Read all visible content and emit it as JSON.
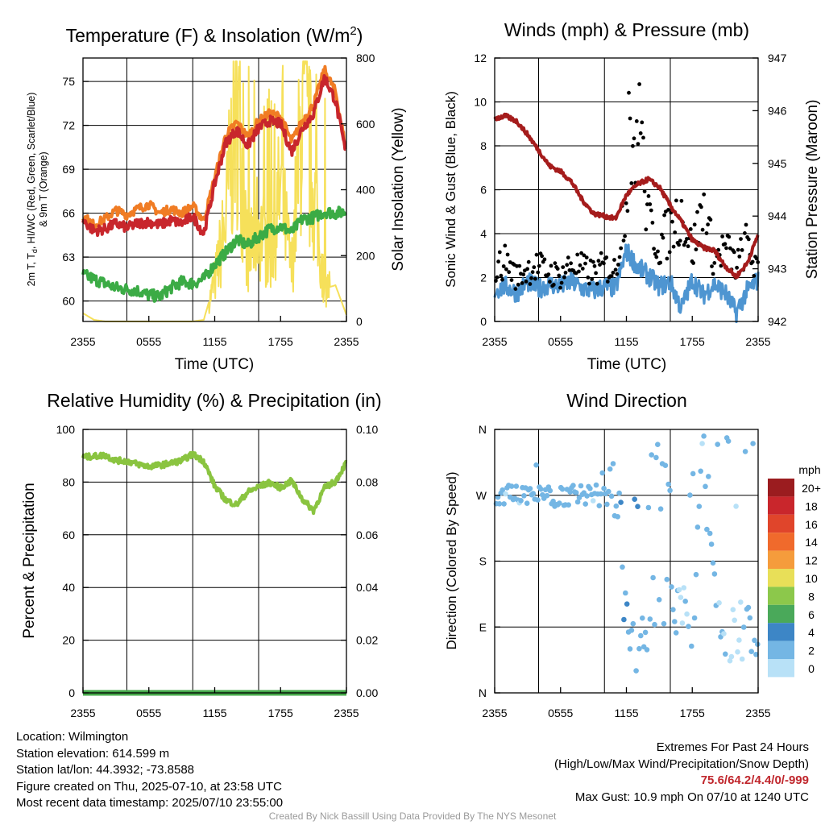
{
  "colors": {
    "red": "#c8262c",
    "orange": "#f07c24",
    "green": "#3bab45",
    "yellow": "#f6e05a",
    "blue": "#4e95d1",
    "black": "#000000",
    "maroon": "#a51c1c",
    "rh": "#8ac440",
    "precip": "#46a84a",
    "extremes": "#c0272d"
  },
  "x_ticks": [
    "2355",
    "0555",
    "1155",
    "1755",
    "2355"
  ],
  "panels": {
    "temperature": {
      "title_main": "Temperature (F) & Insolation (W/m",
      "title_sup": "2",
      "title_close": ")",
      "xlabel": "Time (UTC)",
      "ylabel_line1": "2m T, T",
      "ylabel_sub": "d",
      "ylabel_line1_rest": ", HI/WC (Red, Green, Scarlet/Blue)",
      "ylabel_line2": "& 9m T (Orange)",
      "ylabel_right": "Solar Insolation (Yellow)",
      "y_ticks": [
        "60",
        "63",
        "66",
        "69",
        "72",
        "75"
      ],
      "y2_ticks": [
        "0",
        "200",
        "400",
        "600",
        "800"
      ]
    },
    "winds": {
      "title": "Winds (mph) & Pressure (mb)",
      "xlabel": "Time (UTC)",
      "ylabel": "Sonic Wind & Gust (Blue, Black)",
      "ylabel_right": "Station Pressure (Maroon)",
      "y_ticks": [
        "0",
        "2",
        "4",
        "6",
        "8",
        "10",
        "12"
      ],
      "y2_ticks": [
        "942",
        "943",
        "944",
        "945",
        "946",
        "947"
      ]
    },
    "humidity": {
      "title": "Relative Humidity (%) & Precipitation (in)",
      "ylabel": "Percent & Precipitation",
      "y_ticks": [
        "0",
        "20",
        "40",
        "60",
        "80",
        "100"
      ],
      "y2_ticks": [
        "0.00",
        "0.02",
        "0.04",
        "0.06",
        "0.08",
        "0.10"
      ]
    },
    "direction": {
      "title": "Wind Direction",
      "ylabel": "Direction (Colored By Speed)",
      "y_ticks": [
        "N",
        "E",
        "S",
        "W",
        "N"
      ],
      "legend_title": "mph",
      "legend_labels": [
        "20+",
        "18",
        "16",
        "14",
        "12",
        "10",
        "8",
        "6",
        "4",
        "2",
        "0"
      ],
      "legend_colors": [
        "#9b1c1f",
        "#c9262c",
        "#e0452b",
        "#f06a2c",
        "#f59c3c",
        "#e8df58",
        "#8cc84b",
        "#4aa95a",
        "#3d86c6",
        "#74b6e4",
        "#b8e1f7"
      ]
    }
  },
  "chart_data": [
    {
      "type": "line",
      "title": "Temperature (F) & Insolation (W/m2)",
      "xlabel": "Time (UTC)",
      "ylabel": "2m T, Td, HI/WC (Red, Green, Scarlet/Blue) & 9m T (Orange)",
      "y2label": "Solar Insolation (Yellow)",
      "x_hours": [
        0,
        1,
        2,
        3,
        4,
        5,
        6,
        7,
        8,
        9,
        10,
        11,
        12,
        13,
        14,
        15,
        16,
        17,
        18,
        19,
        20,
        21,
        22,
        23,
        24
      ],
      "ylim": [
        58.6,
        76.6
      ],
      "y2lim": [
        0,
        800
      ],
      "series": [
        {
          "name": "2m T",
          "axis": "left",
          "color": "#c8262c",
          "values": [
            65.5,
            64.8,
            64.9,
            65.3,
            65.0,
            65.3,
            65.4,
            65.2,
            65.5,
            65.3,
            65.8,
            64.6,
            68.0,
            70.8,
            71.7,
            70.6,
            71.8,
            72.3,
            72.1,
            70.2,
            71.8,
            72.8,
            75.3,
            73.7,
            69.9
          ]
        },
        {
          "name": "9m T",
          "axis": "left",
          "color": "#f07c24",
          "values": [
            65.8,
            65.2,
            65.6,
            66.2,
            65.9,
            66.3,
            66.6,
            66.0,
            66.3,
            66.0,
            66.5,
            65.5,
            68.4,
            71.3,
            72.2,
            71.2,
            72.3,
            72.8,
            72.6,
            70.9,
            72.3,
            73.4,
            75.8,
            74.3,
            70.2
          ]
        },
        {
          "name": "Td",
          "axis": "left",
          "color": "#3bab45",
          "values": [
            61.8,
            61.5,
            61.2,
            60.9,
            60.8,
            60.7,
            60.4,
            60.3,
            60.9,
            61.3,
            61.2,
            61.5,
            62.5,
            63.3,
            64.2,
            63.8,
            64.4,
            64.9,
            65.1,
            64.7,
            65.6,
            65.7,
            66.1,
            66.0,
            66.1
          ]
        },
        {
          "name": "Solar Insolation",
          "axis": "right",
          "color": "#f6e05a",
          "values": [
            25,
            5,
            0,
            0,
            0,
            0,
            0,
            0,
            0,
            0,
            0,
            5,
            120,
            300,
            700,
            200,
            300,
            200,
            400,
            150,
            650,
            400,
            100,
            110,
            20
          ]
        }
      ]
    },
    {
      "type": "line",
      "title": "Winds (mph) & Pressure (mb)",
      "xlabel": "Time (UTC)",
      "ylabel": "Sonic Wind & Gust (Blue, Black)",
      "y2label": "Station Pressure (Maroon)",
      "x_hours": [
        0,
        1,
        2,
        3,
        4,
        5,
        6,
        7,
        8,
        9,
        10,
        11,
        12,
        13,
        14,
        15,
        16,
        17,
        18,
        19,
        20,
        21,
        22,
        23,
        24
      ],
      "ylim": [
        0,
        12
      ],
      "y2lim": [
        942,
        947
      ],
      "series": [
        {
          "name": "Sonic Wind",
          "axis": "left",
          "color": "#4e95d1",
          "values": [
            1.4,
            1.6,
            1.3,
            1.8,
            1.5,
            1.7,
            1.6,
            1.8,
            1.5,
            1.4,
            1.6,
            1.5,
            3.2,
            2.5,
            2.1,
            1.6,
            1.8,
            0.6,
            1.9,
            1.2,
            1.7,
            1.3,
            0.4,
            1.4,
            1.9
          ]
        },
        {
          "name": "Gust",
          "axis": "left",
          "color": "#000000",
          "markers": true,
          "values": [
            2.3,
            2.8,
            2.0,
            2.4,
            2.5,
            2.2,
            2.1,
            2.6,
            2.4,
            2.2,
            2.5,
            2.3,
            6.0,
            9.5,
            4.5,
            3.5,
            4.2,
            5.0,
            3.2,
            5.2,
            2.8,
            3.4,
            2.5,
            3.6,
            2.1
          ]
        },
        {
          "name": "Station Pressure",
          "axis": "right",
          "color": "#a51c1c",
          "values": [
            945.85,
            945.9,
            945.8,
            945.55,
            945.25,
            944.95,
            944.85,
            944.65,
            944.3,
            944.05,
            944.0,
            943.95,
            944.4,
            944.6,
            944.7,
            944.55,
            944.2,
            943.9,
            943.55,
            943.4,
            943.35,
            943.05,
            942.85,
            943.1,
            943.65
          ]
        }
      ]
    },
    {
      "type": "line",
      "title": "Relative Humidity (%) & Precipitation (in)",
      "ylabel": "Percent & Precipitation",
      "x_hours": [
        0,
        1,
        2,
        3,
        4,
        5,
        6,
        7,
        8,
        9,
        10,
        11,
        12,
        13,
        14,
        15,
        16,
        17,
        18,
        19,
        20,
        21,
        22,
        23,
        24
      ],
      "ylim": [
        0,
        100
      ],
      "y2lim": [
        0,
        0.1
      ],
      "series": [
        {
          "name": "Relative Humidity",
          "axis": "left",
          "color": "#8ac440",
          "values": [
            89.5,
            89.8,
            90.2,
            88.2,
            88.0,
            86.8,
            86.0,
            86.4,
            87.2,
            88.2,
            90.6,
            88.0,
            78.5,
            73.2,
            71.4,
            76.2,
            78.2,
            79.8,
            77.9,
            80.5,
            73.5,
            69.2,
            77.8,
            80.3,
            87.5
          ]
        },
        {
          "name": "Precipitation",
          "axis": "right",
          "color": "#46a84a",
          "values": [
            0,
            0,
            0,
            0,
            0,
            0,
            0,
            0,
            0,
            0,
            0,
            0,
            0,
            0,
            0,
            0,
            0,
            0,
            0,
            0,
            0,
            0,
            0,
            0,
            0
          ]
        }
      ]
    },
    {
      "type": "scatter",
      "title": "Wind Direction",
      "ylabel": "Direction (Colored By Speed)",
      "y_categories": [
        "N",
        "E",
        "S",
        "W",
        "N"
      ],
      "ylim": [
        0,
        360
      ],
      "x_hours": [
        0,
        1,
        2,
        3,
        4,
        5,
        6,
        7,
        8,
        9,
        10,
        11,
        12,
        13,
        14,
        15,
        16,
        17,
        18,
        19,
        20,
        21,
        22,
        23,
        24
      ],
      "direction_deg": [
        272,
        270,
        274,
        268,
        272,
        276,
        270,
        268,
        275,
        272,
        278,
        270,
        80,
        55,
        100,
        150,
        95,
        140,
        75,
        330,
        120,
        95,
        60,
        115,
        75
      ],
      "speed_mph": [
        1.4,
        1.6,
        1.3,
        1.8,
        1.5,
        1.7,
        1.6,
        1.8,
        1.5,
        1.4,
        1.6,
        1.5,
        3.2,
        2.5,
        2.1,
        1.6,
        1.8,
        0.6,
        1.9,
        1.2,
        1.7,
        1.3,
        0.4,
        1.4,
        1.9
      ]
    }
  ],
  "info": {
    "location": "Location: Wilmington",
    "elevation": "Station elevation: 614.599 m",
    "latlon": "Station lat/lon: 44.3932; -73.8588",
    "created": "Figure created on Thu, 2025-07-10, at 23:58 UTC",
    "recent": "Most recent data timestamp: 2025/07/10 23:55:00"
  },
  "extremes": {
    "title": "Extremes For Past 24 Hours",
    "subtitle": "(High/Low/Max Wind/Precipitation/Snow Depth)",
    "values": "75.6/64.2/4.4/0/-999",
    "max_gust": "Max Gust: 10.9 mph On 07/10 at 1240 UTC"
  },
  "credit": "Created By Nick Bassill Using Data Provided By The NYS Mesonet"
}
